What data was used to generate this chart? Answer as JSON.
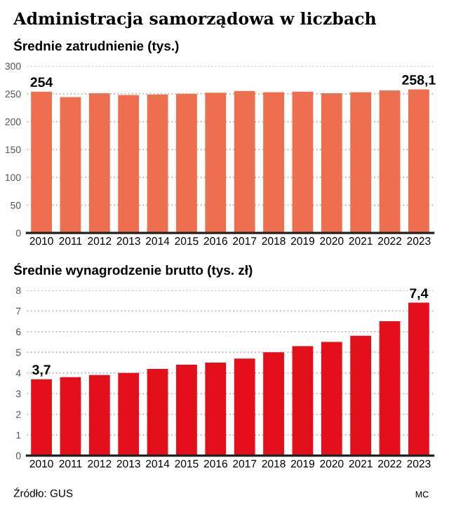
{
  "chart_data": [
    {
      "type": "bar",
      "title": "Administracja samorządowa w liczbach",
      "subtitle": "Średnie zatrudnienie (tys.)",
      "categories": [
        "2010",
        "2011",
        "2012",
        "2013",
        "2014",
        "2015",
        "2016",
        "2017",
        "2018",
        "2019",
        "2020",
        "2021",
        "2022",
        "2023"
      ],
      "values": [
        254,
        244,
        251,
        248,
        249,
        250,
        252,
        255,
        253,
        254,
        251,
        253,
        256,
        258.1
      ],
      "value_labels": [
        "254",
        null,
        null,
        null,
        null,
        null,
        null,
        null,
        null,
        null,
        null,
        null,
        null,
        "258,1"
      ],
      "color": "#ee6f50",
      "ylim": [
        0,
        300
      ],
      "yticks": [
        0,
        50,
        100,
        150,
        200,
        250,
        300
      ],
      "grid": "y"
    },
    {
      "type": "bar",
      "subtitle": "Średnie wynagrodzenie brutto (tys. zł)",
      "categories": [
        "2010",
        "2011",
        "2012",
        "2013",
        "2014",
        "2015",
        "2016",
        "2017",
        "2018",
        "2019",
        "2020",
        "2021",
        "2022",
        "2023"
      ],
      "values": [
        3.7,
        3.8,
        3.9,
        4.0,
        4.2,
        4.4,
        4.5,
        4.7,
        5.0,
        5.3,
        5.5,
        5.8,
        6.5,
        7.4
      ],
      "value_labels": [
        "3,7",
        null,
        null,
        null,
        null,
        null,
        null,
        null,
        null,
        null,
        null,
        null,
        null,
        "7,4"
      ],
      "color": "#e3101c",
      "ylim": [
        0,
        8
      ],
      "yticks": [
        0,
        1,
        2,
        3,
        4,
        5,
        6,
        7,
        8
      ],
      "grid": "y",
      "annotations": [
        "Źródło: GUS",
        "MC"
      ]
    }
  ]
}
